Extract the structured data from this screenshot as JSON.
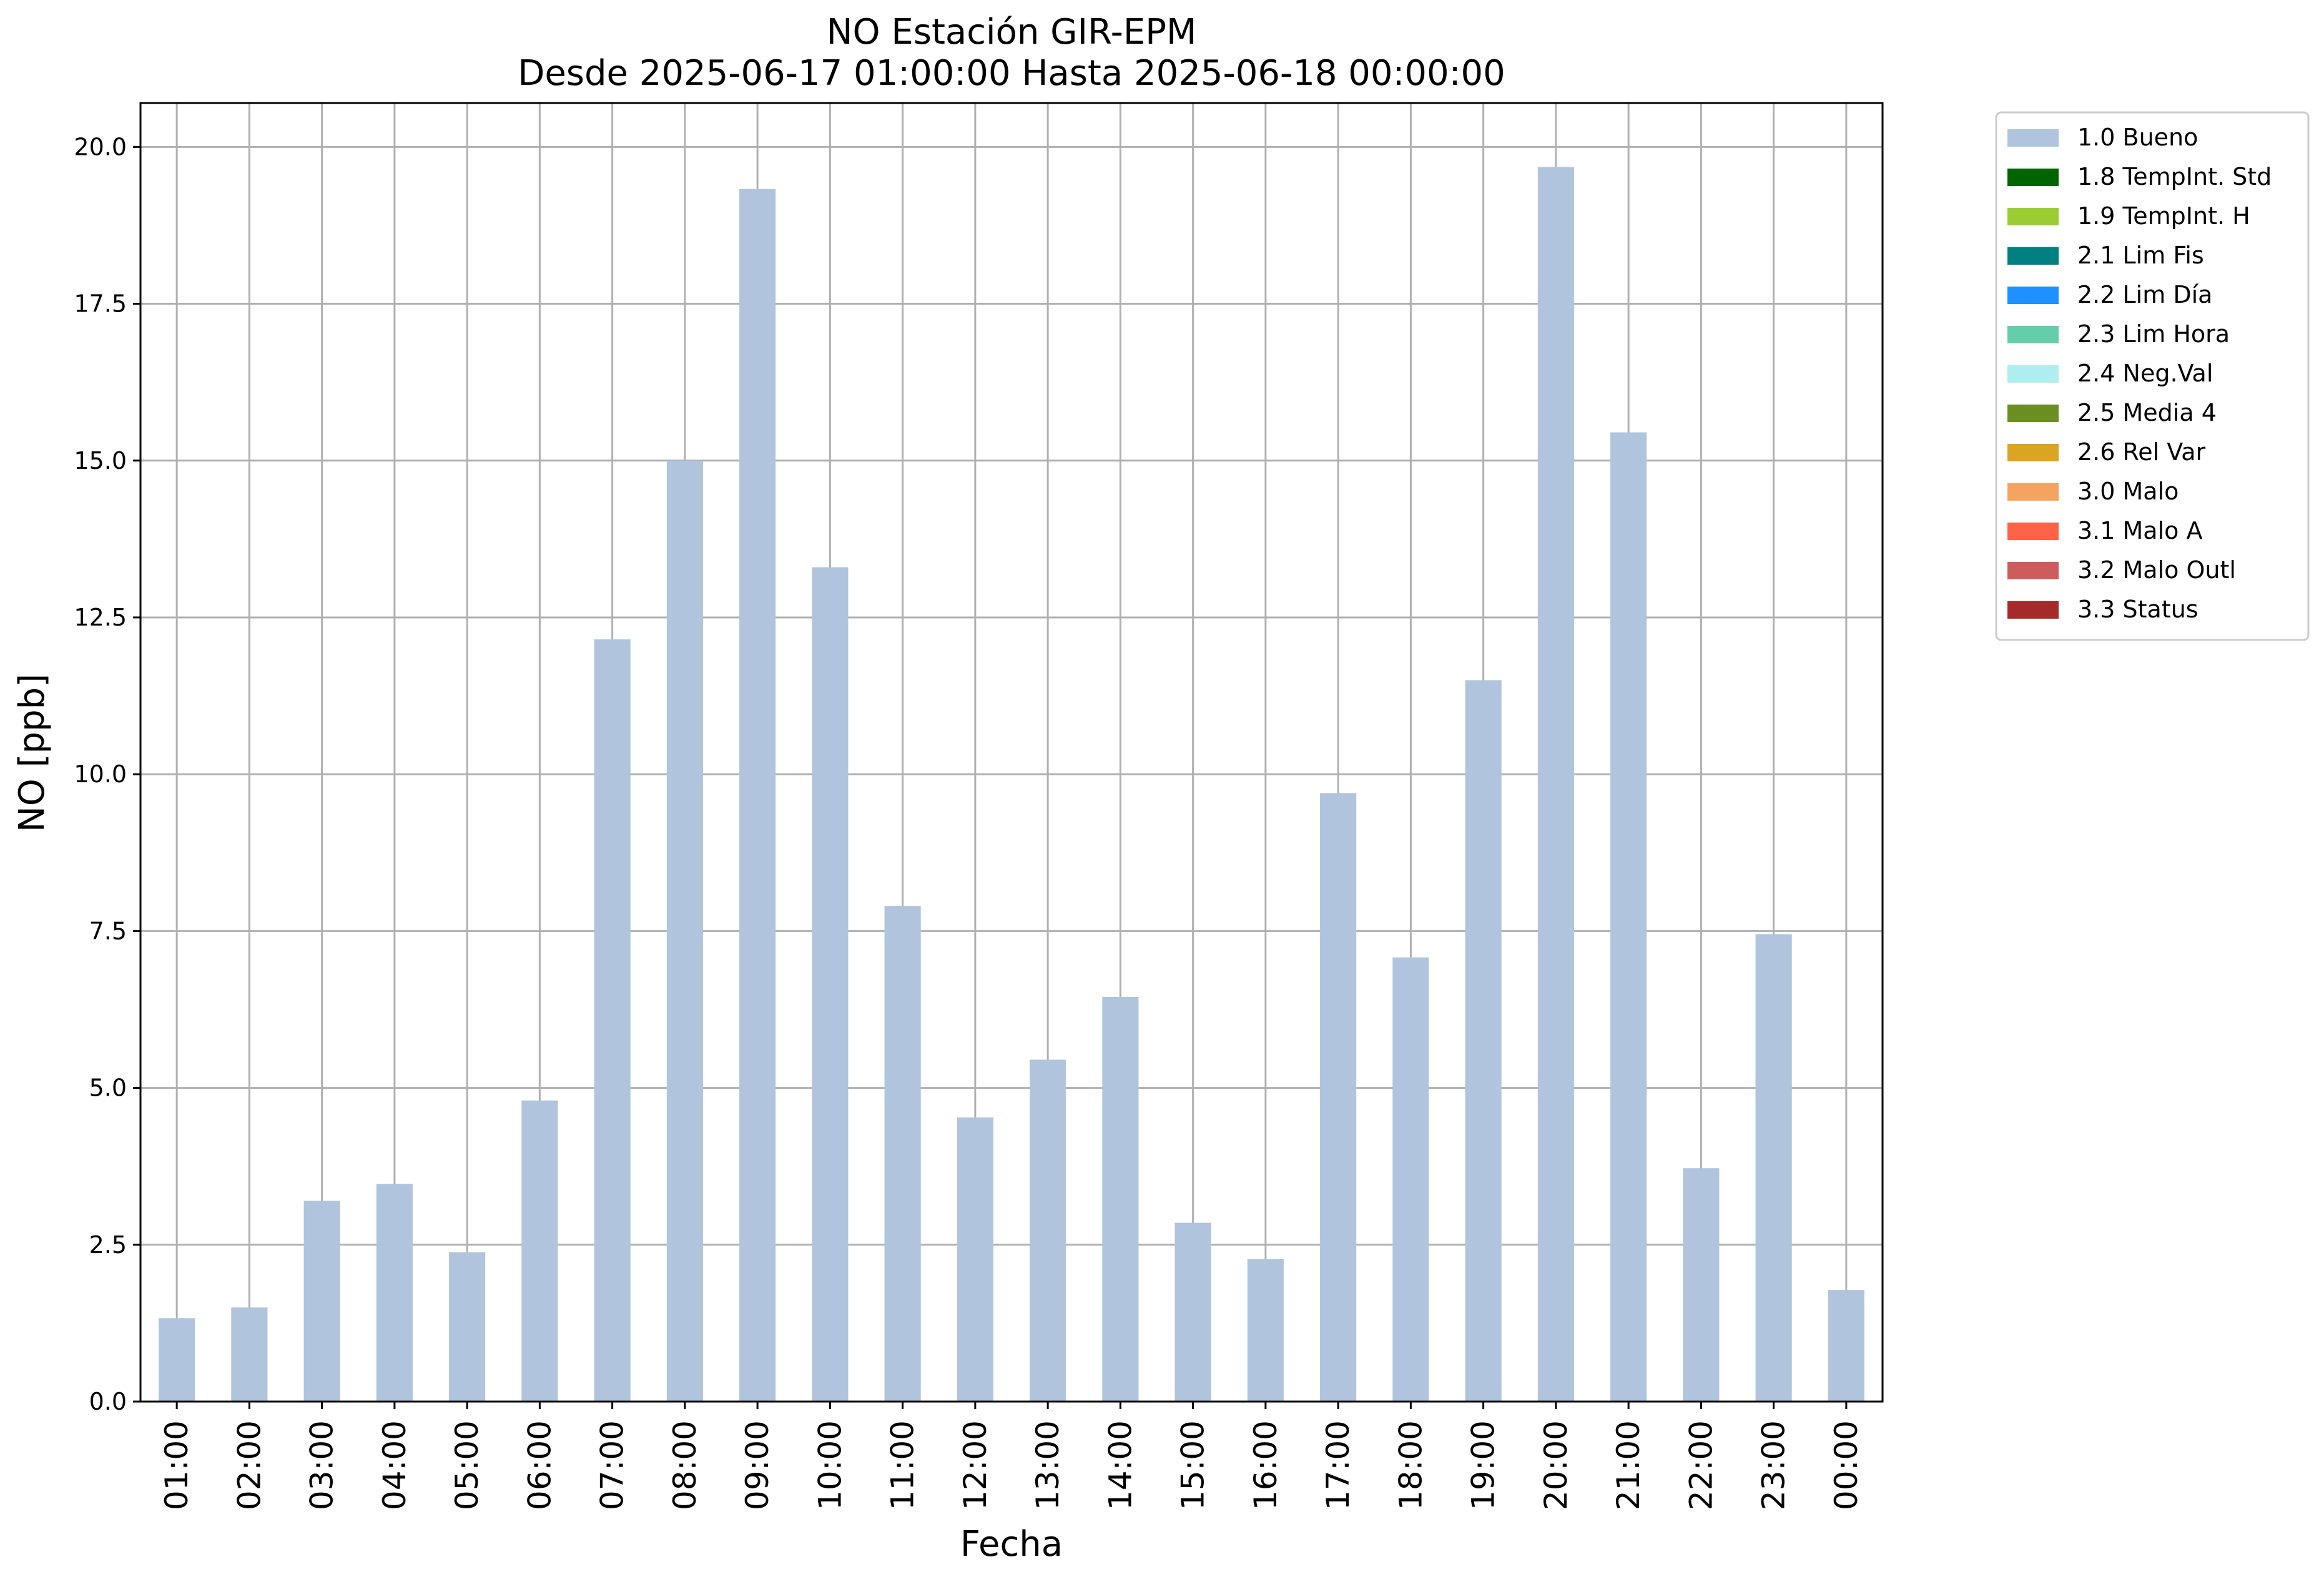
{
  "chart_data": {
    "type": "bar",
    "title": "NO Estación GIR-EPM",
    "subtitle": "Desde 2025-06-17 01:00:00 Hasta 2025-06-18 00:00:00",
    "xlabel": "Fecha",
    "ylabel": "NO [ppb]",
    "ylim": [
      0,
      20.7
    ],
    "yticks": [
      "0.0",
      "2.5",
      "5.0",
      "7.5",
      "10.0",
      "12.5",
      "15.0",
      "17.5",
      "20.0"
    ],
    "grid": true,
    "legend_position": "outside top-right",
    "categories": [
      "01:00",
      "02:00",
      "03:00",
      "04:00",
      "05:00",
      "06:00",
      "07:00",
      "08:00",
      "09:00",
      "10:00",
      "11:00",
      "12:00",
      "13:00",
      "14:00",
      "15:00",
      "16:00",
      "17:00",
      "18:00",
      "19:00",
      "20:00",
      "21:00",
      "22:00",
      "23:00",
      "00:00"
    ],
    "series": [
      {
        "name": "1.0 Bueno",
        "color": "#b0c4de",
        "values": [
          1.33,
          1.5,
          3.2,
          3.47,
          2.38,
          4.8,
          12.15,
          15.0,
          19.33,
          13.3,
          7.9,
          4.53,
          5.45,
          6.45,
          2.85,
          2.27,
          9.7,
          7.08,
          11.5,
          19.68,
          15.45,
          3.72,
          7.45,
          1.78
        ]
      }
    ],
    "legend": [
      {
        "label": "1.0 Bueno",
        "color": "#b0c4de"
      },
      {
        "label": "1.8 TempInt. Std",
        "color": "#006400"
      },
      {
        "label": "1.9 TempInt. H",
        "color": "#9acd32"
      },
      {
        "label": "2.1 Lim Fis",
        "color": "#008080"
      },
      {
        "label": "2.2 Lim Día",
        "color": "#1e90ff"
      },
      {
        "label": "2.3 Lim Hora",
        "color": "#66cdaa"
      },
      {
        "label": "2.4 Neg.Val",
        "color": "#afeeee"
      },
      {
        "label": "2.5 Media 4",
        "color": "#6b8e23"
      },
      {
        "label": "2.6 Rel Var",
        "color": "#daa520"
      },
      {
        "label": "3.0 Malo",
        "color": "#f4a460"
      },
      {
        "label": "3.1 Malo A",
        "color": "#ff6347"
      },
      {
        "label": "3.2 Malo Outl",
        "color": "#cd5c5c"
      },
      {
        "label": "3.3 Status",
        "color": "#a52a2a"
      }
    ]
  }
}
